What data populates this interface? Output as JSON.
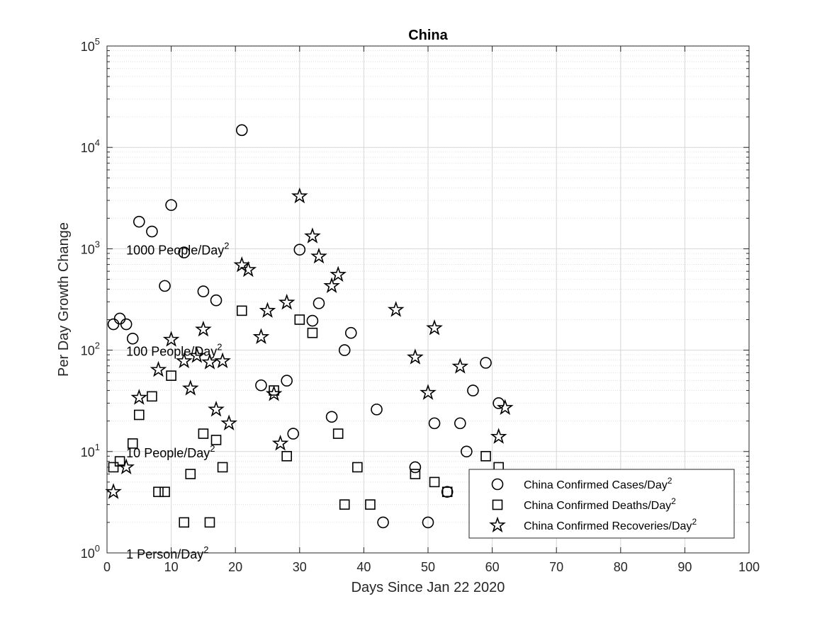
{
  "chart_data": {
    "type": "scatter",
    "title": "China",
    "xlabel": "Days Since Jan 22 2020",
    "ylabel": "Per Day Growth Change",
    "xlim": [
      0,
      100
    ],
    "ylim": [
      1,
      100000
    ],
    "yscale": "log",
    "grid": true,
    "legend_position": "bottom-right",
    "xticks": [
      "0",
      "10",
      "20",
      "30",
      "40",
      "50",
      "60",
      "70",
      "80",
      "90",
      "100"
    ],
    "yticks": [
      {
        "base": "10",
        "exp": "0",
        "value": 1
      },
      {
        "base": "10",
        "exp": "1",
        "value": 10
      },
      {
        "base": "10",
        "exp": "2",
        "value": 100
      },
      {
        "base": "10",
        "exp": "3",
        "value": 1000
      },
      {
        "base": "10",
        "exp": "4",
        "value": 10000
      },
      {
        "base": "10",
        "exp": "5",
        "value": 100000
      }
    ],
    "annotations": [
      {
        "text": "1000 People/Day",
        "sup": "2",
        "x": 3,
        "y": 1000
      },
      {
        "text": "100 People/Day",
        "sup": "2",
        "x": 3,
        "y": 100
      },
      {
        "text": "10 People/Day",
        "sup": "2",
        "x": 3,
        "y": 10
      },
      {
        "text": "1 Person/Day",
        "sup": "2",
        "x": 3,
        "y": 1
      }
    ],
    "series": [
      {
        "name": "China Confirmed Cases/Day",
        "name_sup": "2",
        "marker": "circle",
        "points": [
          [
            1,
            180
          ],
          [
            2,
            205
          ],
          [
            3,
            180
          ],
          [
            4,
            130
          ],
          [
            5,
            1850
          ],
          [
            7,
            1480
          ],
          [
            9,
            430
          ],
          [
            10,
            2700
          ],
          [
            12,
            920
          ],
          [
            15,
            380
          ],
          [
            17,
            310
          ],
          [
            21,
            14800
          ],
          [
            24,
            45
          ],
          [
            28,
            50
          ],
          [
            29,
            15
          ],
          [
            30,
            980
          ],
          [
            32,
            195
          ],
          [
            33,
            290
          ],
          [
            35,
            22
          ],
          [
            37,
            100
          ],
          [
            38,
            148
          ],
          [
            42,
            26
          ],
          [
            43,
            2
          ],
          [
            48,
            7
          ],
          [
            50,
            2
          ],
          [
            51,
            19
          ],
          [
            53,
            4
          ],
          [
            55,
            19
          ],
          [
            56,
            10
          ],
          [
            57,
            40
          ],
          [
            59,
            75
          ],
          [
            61,
            30
          ]
        ]
      },
      {
        "name": "China Confirmed Deaths/Day",
        "name_sup": "2",
        "marker": "square",
        "points": [
          [
            1,
            7
          ],
          [
            2,
            8
          ],
          [
            4,
            12
          ],
          [
            5,
            23
          ],
          [
            7,
            35
          ],
          [
            8,
            4
          ],
          [
            9,
            4
          ],
          [
            10,
            56
          ],
          [
            12,
            2
          ],
          [
            13,
            6
          ],
          [
            15,
            15
          ],
          [
            16,
            2
          ],
          [
            17,
            13
          ],
          [
            18,
            7
          ],
          [
            21,
            245
          ],
          [
            26,
            40
          ],
          [
            28,
            9
          ],
          [
            30,
            200
          ],
          [
            32,
            148
          ],
          [
            36,
            15
          ],
          [
            37,
            3
          ],
          [
            39,
            7
          ],
          [
            41,
            3
          ],
          [
            48,
            6
          ],
          [
            51,
            5
          ],
          [
            53,
            4
          ],
          [
            59,
            9
          ],
          [
            61,
            7
          ]
        ]
      },
      {
        "name": "China Confirmed Recoveries/Day",
        "name_sup": "2",
        "marker": "star",
        "points": [
          [
            1,
            4
          ],
          [
            3,
            7
          ],
          [
            5,
            34
          ],
          [
            8,
            64
          ],
          [
            10,
            127
          ],
          [
            12,
            78
          ],
          [
            13,
            42
          ],
          [
            14,
            88
          ],
          [
            15,
            160
          ],
          [
            16,
            76
          ],
          [
            17,
            26
          ],
          [
            18,
            78
          ],
          [
            19,
            19
          ],
          [
            21,
            690
          ],
          [
            22,
            620
          ],
          [
            24,
            135
          ],
          [
            25,
            245
          ],
          [
            26,
            37
          ],
          [
            27,
            12
          ],
          [
            28,
            295
          ],
          [
            30,
            3300
          ],
          [
            32,
            1330
          ],
          [
            33,
            840
          ],
          [
            35,
            430
          ],
          [
            36,
            555
          ],
          [
            45,
            250
          ],
          [
            48,
            85
          ],
          [
            50,
            38
          ],
          [
            51,
            165
          ],
          [
            55,
            69
          ],
          [
            61,
            14
          ],
          [
            62,
            27
          ]
        ]
      }
    ]
  }
}
